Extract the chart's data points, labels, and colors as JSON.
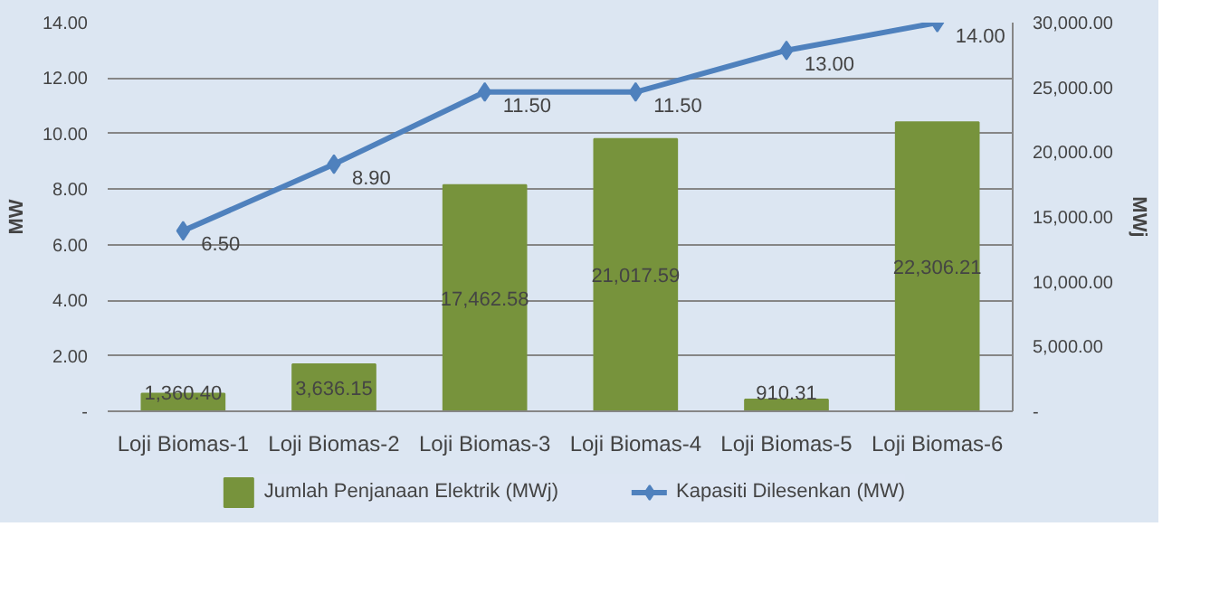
{
  "chart_data": {
    "type": "bar",
    "categories": [
      "Loji Biomas-1",
      "Loji Biomas-2",
      "Loji Biomas-3",
      "Loji Biomas-4",
      "Loji Biomas-5",
      "Loji Biomas-6"
    ],
    "ylabel": "MW",
    "y2label": "MWj",
    "ylim": [
      0,
      14
    ],
    "yticks": [
      {
        "value": 0,
        "label": "-"
      },
      {
        "value": 2,
        "label": "2.00"
      },
      {
        "value": 4,
        "label": "4.00"
      },
      {
        "value": 6,
        "label": "6.00"
      },
      {
        "value": 8,
        "label": "8.00"
      },
      {
        "value": 10,
        "label": "10.00"
      },
      {
        "value": 12,
        "label": "12.00"
      },
      {
        "value": 14,
        "label": "14.00"
      }
    ],
    "y2lim": [
      0,
      30000
    ],
    "y2ticks": [
      {
        "value": 0,
        "label": "-"
      },
      {
        "value": 5000,
        "label": "5,000.00"
      },
      {
        "value": 10000,
        "label": "10,000.00"
      },
      {
        "value": 15000,
        "label": "15,000.00"
      },
      {
        "value": 20000,
        "label": "20,000.00"
      },
      {
        "value": 25000,
        "label": "25,000.00"
      },
      {
        "value": 30000,
        "label": "30,000.00"
      }
    ],
    "series": [
      {
        "name": "Jumlah Penjanaan Elektrik (MWj)",
        "axis": "y2",
        "color": "#77933c",
        "values": [
          1360.4,
          3636.15,
          17462.58,
          21017.59,
          910.31,
          22306.21
        ],
        "value_labels": [
          "1,360.40",
          "3,636.15",
          "17,462.58",
          "21,017.59",
          "910.31",
          "22,306.21"
        ]
      },
      {
        "name": "Kapasiti Dilesenkan (MW)",
        "type": "line",
        "axis": "y",
        "color": "#4f81bd",
        "marker": "diamond",
        "values": [
          6.5,
          8.9,
          11.5,
          11.5,
          13.0,
          14.0
        ],
        "value_labels": [
          "6.50",
          "8.90",
          "11.50",
          "11.50",
          "13.00",
          "14.00"
        ]
      }
    ],
    "grid": "y",
    "legend": "bottom"
  }
}
